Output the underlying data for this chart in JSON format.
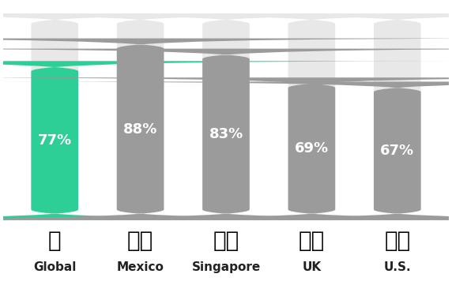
{
  "categories": [
    "Global",
    "Mexico",
    "Singapore",
    "UK",
    "U.S."
  ],
  "values": [
    77,
    88,
    83,
    69,
    67
  ],
  "bar_total": 100,
  "fill_color_first": "#2dcf96",
  "fill_color_rest": "#9b9b9b",
  "empty_color": "#e8e8e8",
  "text_color": "#ffffff",
  "label_color": "#222222",
  "background_color": "#ffffff",
  "bar_width": 0.55,
  "figsize": [
    5.72,
    3.61
  ],
  "dpi": 100,
  "value_fontsize": 13,
  "label_fontsize": 11,
  "flag_fontsize": 20
}
